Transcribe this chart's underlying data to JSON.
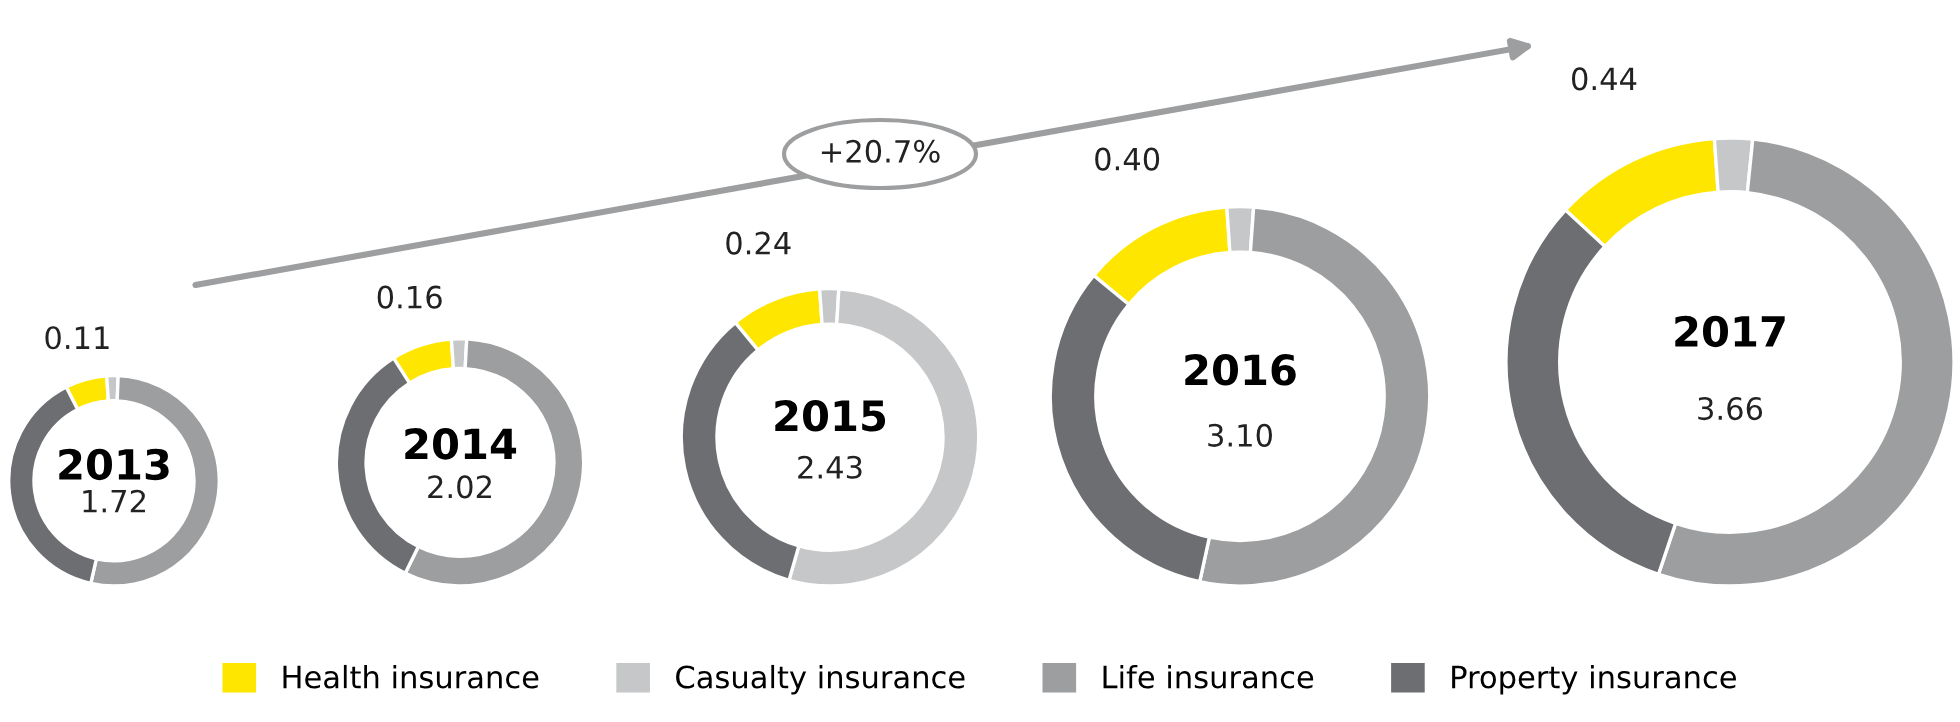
{
  "chart_data": [
    {
      "type": "donut",
      "title": "2013",
      "categories": [
        "Health insurance",
        "Casualty insurance",
        "Life insurance",
        "Property insurance"
      ],
      "values": [
        0.11,
        0.03,
        0.91,
        0.67
      ],
      "colors": [
        "#ffe600",
        "#c6c7c8",
        "#9d9e9f",
        "#6d6e71"
      ],
      "value_labels": [
        "0.11",
        null,
        null,
        null
      ],
      "annotations": [
        "1.72",
        "+20.7%"
      ],
      "legend": "bottom"
    },
    {
      "type": "donut",
      "title": "2014",
      "categories": [
        null,
        null,
        null,
        null
      ],
      "values": [
        0.16,
        0.04,
        1.14,
        0.68
      ],
      "colors": [
        "#ffe600",
        "#c6c7c8",
        "#9d9e9f",
        "#6d6e71"
      ],
      "value_labels": [
        "0.16",
        null,
        null,
        null
      ],
      "annotations": [
        "2.02"
      ]
    },
    {
      "type": "donut",
      "title": "2015",
      "categories": [
        null,
        null,
        null,
        null
      ],
      "values": [
        0.24,
        0.05,
        1.3,
        0.84
      ],
      "colors": [
        "#ffe600",
        "#c6c7c8",
        "#c6c7c8",
        "#6d6e71"
      ],
      "value_labels": [
        "0.24",
        null,
        null,
        null
      ],
      "annotations": [
        "2.43"
      ]
    },
    {
      "type": "donut",
      "title": "2016",
      "categories": [
        null,
        null,
        null,
        null
      ],
      "values": [
        0.4,
        0.07,
        1.62,
        1.01
      ],
      "colors": [
        "#ffe600",
        "#c6c7c8",
        "#9d9e9f",
        "#6d6e71"
      ],
      "value_labels": [
        "0.40",
        null,
        null,
        null
      ],
      "annotations": [
        "3.10"
      ]
    },
    {
      "type": "donut",
      "title": "2017",
      "categories": [
        null,
        null,
        null,
        null
      ],
      "values": [
        0.44,
        0.1,
        1.96,
        1.16
      ],
      "colors": [
        "#ffe600",
        "#c6c7c8",
        "#9d9e9f",
        "#6d6e71"
      ],
      "value_labels": [
        "0.44",
        null,
        null,
        null
      ],
      "annotations": [
        "3.66"
      ]
    }
  ]
}
